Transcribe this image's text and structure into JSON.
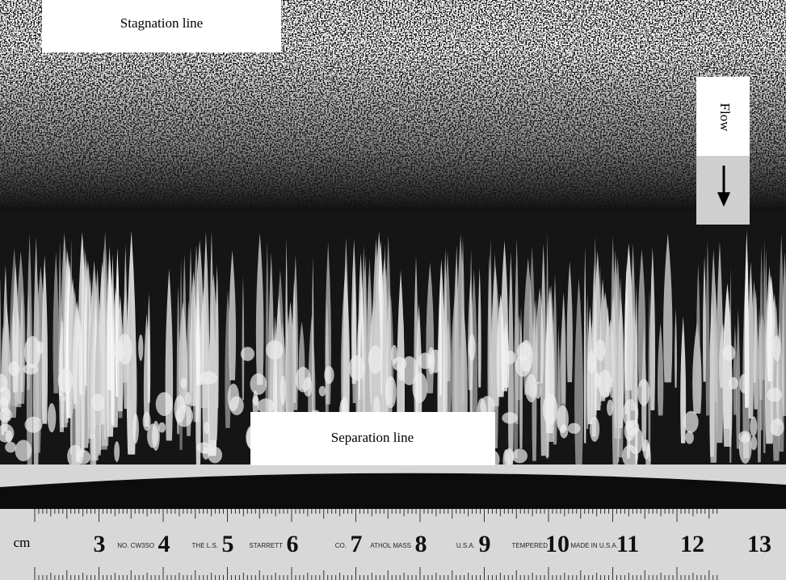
{
  "labels": {
    "stagnation": "Stagnation line",
    "separation": "Separation line",
    "flow": "Flow"
  },
  "ruler": {
    "unit": "cm",
    "numbers": [
      "3",
      "4",
      "5",
      "6",
      "7",
      "8",
      "9",
      "10",
      "11",
      "12",
      "13"
    ],
    "imprints": [
      "NO. CW3SO",
      "THE L.S.",
      "STARRETT",
      "CO.",
      "ATHOL MASS",
      "U.S.A.",
      "TEMPERED",
      "MADE IN U.S.A."
    ]
  }
}
